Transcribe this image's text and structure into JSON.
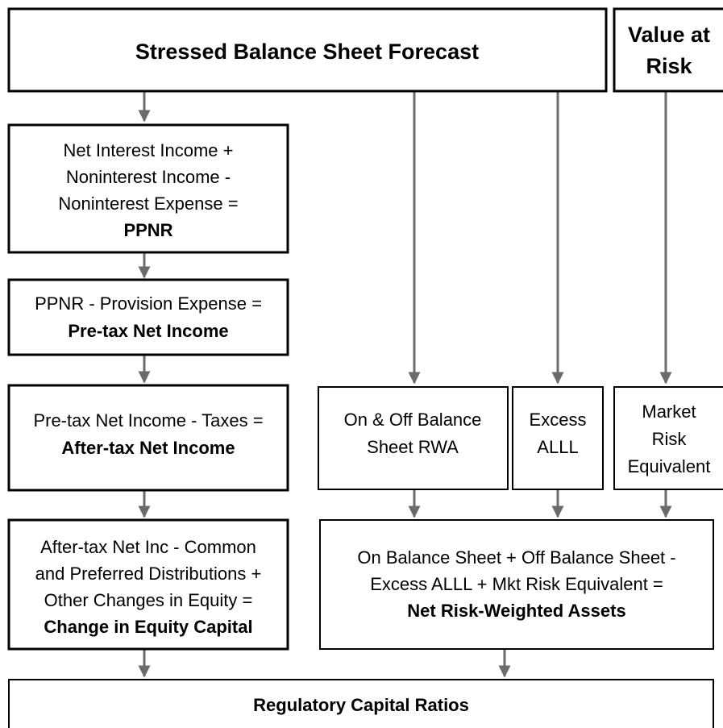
{
  "nodes": [
    {
      "lines": [
        "Stressed Balance Sheet Forecast"
      ]
    },
    {
      "lines": [
        "Value at",
        "Risk"
      ]
    },
    {
      "lines": [
        "Net Interest Income +",
        "Noninterest Income -",
        "Noninterest Expense =",
        "PPNR"
      ]
    },
    {
      "lines": [
        "PPNR - Provision Expense =",
        "Pre-tax Net Income"
      ]
    },
    {
      "lines": [
        "Pre-tax Net Income - Taxes =",
        "After-tax Net Income"
      ]
    },
    {
      "lines": [
        "After-tax Net Inc - Common",
        "and Preferred Distributions +",
        "Other Changes in Equity =",
        "Change in Equity Capital"
      ]
    },
    {
      "lines": [
        "On & Off Balance",
        "Sheet RWA"
      ]
    },
    {
      "lines": [
        "Excess",
        "ALLL"
      ]
    },
    {
      "lines": [
        "Market",
        "Risk",
        "Equivalent"
      ]
    },
    {
      "lines": [
        "On Balance Sheet + Off Balance Sheet -",
        "Excess ALLL + Mkt Risk Equivalent =",
        "Net Risk-Weighted Assets"
      ]
    },
    {
      "lines": [
        "Regulatory Capital Ratios"
      ]
    }
  ]
}
